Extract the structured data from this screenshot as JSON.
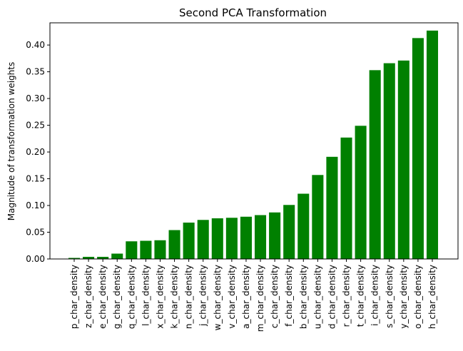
{
  "chart_data": {
    "type": "bar",
    "title": "Second PCA Transformation",
    "xlabel": "",
    "ylabel": "Magnitude of transformation weights",
    "ylim": [
      0,
      0.4415
    ],
    "yticks": [
      0.0,
      0.05,
      0.1,
      0.15,
      0.2,
      0.25,
      0.3,
      0.35,
      0.4
    ],
    "ytick_labels": [
      "0.00",
      "0.05",
      "0.10",
      "0.15",
      "0.20",
      "0.25",
      "0.30",
      "0.35",
      "0.40"
    ],
    "grid": false,
    "colors": {
      "bar": "#008000"
    },
    "categories": [
      "p_char_density",
      "z_char_density",
      "e_char_density",
      "g_char_density",
      "q_char_density",
      "l_char_density",
      "x_char_density",
      "k_char_density",
      "n_char_density",
      "j_char_density",
      "w_char_density",
      "v_char_density",
      "a_char_density",
      "m_char_density",
      "c_char_density",
      "f_char_density",
      "b_char_density",
      "u_char_density",
      "d_char_density",
      "r_char_density",
      "t_char_density",
      "i_char_density",
      "s_char_density",
      "y_char_density",
      "o_char_density",
      "h_char_density"
    ],
    "values": [
      0.002,
      0.004,
      0.004,
      0.01,
      0.033,
      0.034,
      0.035,
      0.054,
      0.068,
      0.073,
      0.076,
      0.077,
      0.079,
      0.082,
      0.087,
      0.101,
      0.122,
      0.157,
      0.191,
      0.227,
      0.249,
      0.353,
      0.366,
      0.371,
      0.413,
      0.427
    ]
  }
}
